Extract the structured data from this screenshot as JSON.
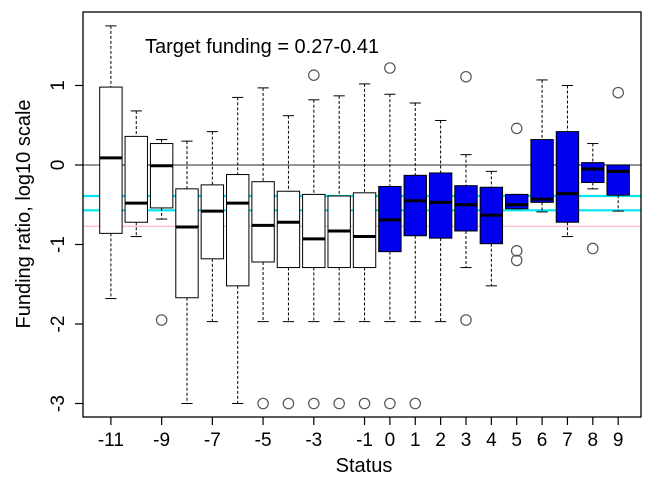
{
  "chart_data": {
    "type": "box",
    "title": "",
    "xlabel": "Status",
    "ylabel": "Funding ratio, log10 scale",
    "ylim": [
      -3.2,
      1.85
    ],
    "annotation": "Target funding = 0.27-0.41",
    "x_tick_labels": [
      "-11",
      "-9",
      "-7",
      "-5",
      "-3",
      "-1",
      "0",
      "1",
      "2",
      "3",
      "4",
      "5",
      "6",
      "7",
      "8",
      "9"
    ],
    "x_tick_positions": [
      -11,
      -9,
      -7,
      -5,
      -3,
      -1,
      0,
      1,
      2,
      3,
      4,
      5,
      6,
      7,
      8,
      9
    ],
    "y_ticks": [
      1,
      0,
      -1,
      -2,
      -3
    ],
    "y_tick_labels": [
      "1",
      "0",
      "-1",
      "-2",
      "-3"
    ],
    "reference_lines": [
      {
        "y": 0,
        "color": "#555555"
      },
      {
        "y": -0.39,
        "color": "#00e5ee"
      },
      {
        "y": -0.57,
        "color": "#00e5ee"
      },
      {
        "y": -0.77,
        "color": "#ffb6c1"
      }
    ],
    "colors": {
      "negative_status": "#ffffff",
      "non_negative_status": "#0000ee"
    },
    "boxes": [
      {
        "status": -11,
        "whisker_low": -1.68,
        "q1": -0.86,
        "median": 0.09,
        "q3": 0.98,
        "whisker_high": 1.75,
        "outliers": []
      },
      {
        "status": -10,
        "whisker_low": -0.9,
        "q1": -0.72,
        "median": -0.48,
        "q3": 0.36,
        "whisker_high": 0.68,
        "outliers": []
      },
      {
        "status": -9,
        "whisker_low": -0.68,
        "q1": -0.54,
        "median": -0.01,
        "q3": 0.27,
        "whisker_high": 0.32,
        "outliers": [
          -1.95
        ]
      },
      {
        "status": -8,
        "whisker_low": -3.0,
        "q1": -1.67,
        "median": -0.78,
        "q3": -0.3,
        "whisker_high": 0.3,
        "outliers": []
      },
      {
        "status": -7,
        "whisker_low": -1.97,
        "q1": -1.18,
        "median": -0.58,
        "q3": -0.25,
        "whisker_high": 0.42,
        "outliers": []
      },
      {
        "status": -6,
        "whisker_low": -3.0,
        "q1": -1.52,
        "median": -0.48,
        "q3": -0.12,
        "whisker_high": 0.85,
        "outliers": []
      },
      {
        "status": -5,
        "whisker_low": -1.97,
        "q1": -1.22,
        "median": -0.76,
        "q3": -0.21,
        "whisker_high": 0.97,
        "outliers": [
          -3.0
        ]
      },
      {
        "status": -4,
        "whisker_low": -1.97,
        "q1": -1.29,
        "median": -0.72,
        "q3": -0.33,
        "whisker_high": 0.62,
        "outliers": [
          -3.0
        ]
      },
      {
        "status": -3,
        "whisker_low": -1.97,
        "q1": -1.29,
        "median": -0.93,
        "q3": -0.37,
        "whisker_high": 0.82,
        "outliers": [
          -3.0,
          1.13
        ]
      },
      {
        "status": -2,
        "whisker_low": -1.97,
        "q1": -1.29,
        "median": -0.83,
        "q3": -0.39,
        "whisker_high": 0.87,
        "outliers": [
          -3.0
        ]
      },
      {
        "status": -1,
        "whisker_low": -1.97,
        "q1": -1.29,
        "median": -0.9,
        "q3": -0.35,
        "whisker_high": 1.02,
        "outliers": [
          -3.0
        ]
      },
      {
        "status": 0,
        "whisker_low": -1.97,
        "q1": -1.09,
        "median": -0.69,
        "q3": -0.27,
        "whisker_high": 0.89,
        "outliers": [
          -3.0,
          1.22
        ]
      },
      {
        "status": 1,
        "whisker_low": -1.97,
        "q1": -0.89,
        "median": -0.45,
        "q3": -0.13,
        "whisker_high": 0.78,
        "outliers": [
          -3.0
        ]
      },
      {
        "status": 2,
        "whisker_low": -1.97,
        "q1": -0.92,
        "median": -0.47,
        "q3": -0.1,
        "whisker_high": 0.56,
        "outliers": []
      },
      {
        "status": 3,
        "whisker_low": -1.29,
        "q1": -0.83,
        "median": -0.5,
        "q3": -0.26,
        "whisker_high": 0.13,
        "outliers": [
          -1.95,
          1.11
        ]
      },
      {
        "status": 4,
        "whisker_low": -1.52,
        "q1": -0.99,
        "median": -0.63,
        "q3": -0.28,
        "whisker_high": -0.08,
        "outliers": []
      },
      {
        "status": 5,
        "whisker_low": -0.55,
        "q1": -0.55,
        "median": -0.5,
        "q3": -0.37,
        "whisker_high": -0.37,
        "outliers": [
          0.46,
          -1.08,
          -1.2
        ]
      },
      {
        "status": 6,
        "whisker_low": -0.59,
        "q1": -0.47,
        "median": -0.43,
        "q3": 0.32,
        "whisker_high": 1.07,
        "outliers": []
      },
      {
        "status": 7,
        "whisker_low": -0.9,
        "q1": -0.72,
        "median": -0.36,
        "q3": 0.42,
        "whisker_high": 1.0,
        "outliers": []
      },
      {
        "status": 8,
        "whisker_low": -0.3,
        "q1": -0.22,
        "median": -0.05,
        "q3": 0.03,
        "whisker_high": 0.27,
        "outliers": [
          -1.05
        ]
      },
      {
        "status": 9,
        "whisker_low": -0.58,
        "q1": -0.38,
        "median": -0.08,
        "q3": 0.0,
        "whisker_high": 0.0,
        "outliers": [
          0.91
        ]
      }
    ]
  }
}
